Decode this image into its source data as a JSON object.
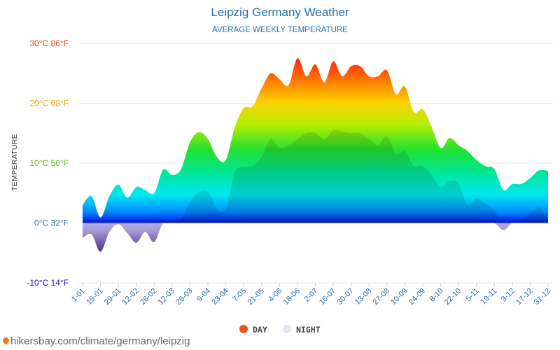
{
  "chart_data": {
    "type": "area",
    "title": "Leipzig Germany Weather",
    "subtitle": "AVERAGE WEEKLY TEMPERATURE",
    "ylabel": "TEMPERATURE",
    "ylim": [
      -10,
      30
    ],
    "y_ticks": [
      {
        "value": 30,
        "label": "30°C 86°F",
        "color": "#e8420f"
      },
      {
        "value": 20,
        "label": "20°C 68°F",
        "color": "#e0b000"
      },
      {
        "value": 10,
        "label": "10°C 50°F",
        "color": "#5fc21a"
      },
      {
        "value": 0,
        "label": "0°C 32°F",
        "color": "#1f6fb2"
      },
      {
        "value": -10,
        "label": "-10°C 14°F",
        "color": "#2200cc"
      }
    ],
    "x_tick_labels": [
      "1-01",
      "15-01",
      "29-01",
      "12-02",
      "26-02",
      "12-03",
      "26-03",
      "9-04",
      "23-04",
      "7-05",
      "21-05",
      "4-06",
      "18-06",
      "2-07",
      "16-07",
      "30-07",
      "13-08",
      "27-08",
      "10-09",
      "24-09",
      "8-10",
      "22-10",
      "5-11",
      "19-11",
      "3-12",
      "17-12",
      "31-12"
    ],
    "series": [
      {
        "name": "DAY",
        "values": [
          3.0,
          4.5,
          0.9,
          4.5,
          6.4,
          4.2,
          6.0,
          5.5,
          5.0,
          8.9,
          8.0,
          9.0,
          13.5,
          15.2,
          14.0,
          11.0,
          10.5,
          16.0,
          19.2,
          19.5,
          22.5,
          25.0,
          24.0,
          23.0,
          27.5,
          24.5,
          26.5,
          23.5,
          27.0,
          24.5,
          26.2,
          26.2,
          24.5,
          24.5,
          25.5,
          21.5,
          22.8,
          18.5,
          19.0,
          16.0,
          12.5,
          14.2,
          13.0,
          12.0,
          10.5,
          9.5,
          9.0,
          5.5,
          6.5,
          6.5,
          7.5,
          8.8,
          8.7
        ]
      },
      {
        "name": "NIGHT",
        "values": [
          -2.5,
          -1.9,
          -4.8,
          -1.5,
          -0.2,
          -1.7,
          -3.3,
          -1.5,
          -3.2,
          0.6,
          0.3,
          0.6,
          3.5,
          5.2,
          5.2,
          2.5,
          2.3,
          8.5,
          9.3,
          9.5,
          11.0,
          14.0,
          12.5,
          13.0,
          14.0,
          15.0,
          15.0,
          14.0,
          15.5,
          15.3,
          15.0,
          15.0,
          14.0,
          13.0,
          14.5,
          11.5,
          12.0,
          9.5,
          9.5,
          8.0,
          6.0,
          7.0,
          6.5,
          3.0,
          4.2,
          3.2,
          2.0,
          -1.2,
          0.2,
          0.5,
          1.5,
          2.6,
          0.2
        ]
      }
    ],
    "legend_position": "bottom-center",
    "legend": [
      {
        "name": "DAY",
        "color": "#f05023"
      },
      {
        "name": "NIGHT",
        "color": "#e4e6f2"
      }
    ]
  },
  "footer": {
    "source": "hikersbay.com/climate/germany/leipzig",
    "pin_icon": "map-pin-icon"
  }
}
